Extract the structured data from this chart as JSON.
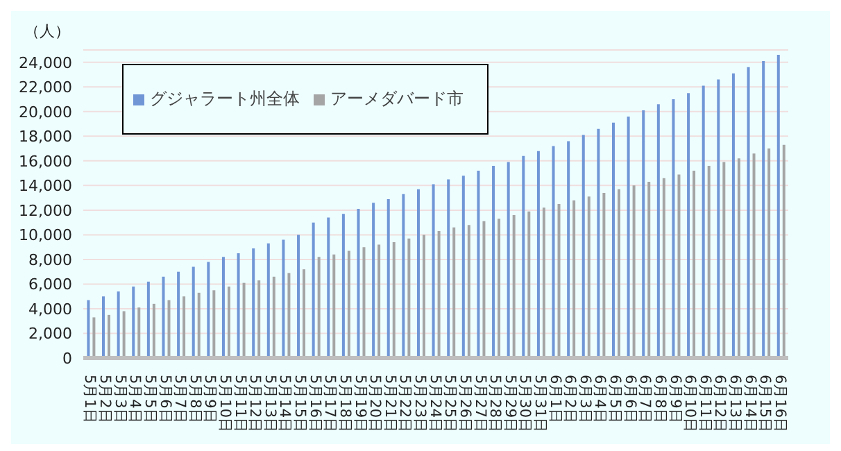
{
  "chart_data": {
    "type": "bar",
    "ylabel": "（人）",
    "categories": [
      "5月1日",
      "5月2日",
      "5月3日",
      "5月4日",
      "5月5日",
      "5月6日",
      "5月7日",
      "5月8日",
      "5月9日",
      "5月10日",
      "5月11日",
      "5月12日",
      "5月13日",
      "5月14日",
      "5月15日",
      "5月16日",
      "5月17日",
      "5月18日",
      "5月19日",
      "5月20日",
      "5月21日",
      "5月22日",
      "5月23日",
      "5月24日",
      "5月25日",
      "5月26日",
      "5月27日",
      "5月28日",
      "5月29日",
      "5月30日",
      "5月31日",
      "6月1日",
      "6月2日",
      "6月3日",
      "6月4日",
      "6月5日",
      "6月6日",
      "6月7日",
      "6月8日",
      "6月9日",
      "6月10日",
      "6月11日",
      "6月12日",
      "6月13日",
      "6月14日",
      "6月15日",
      "6月16日"
    ],
    "series": [
      {
        "name": "グジャラート州全体",
        "color": "#7096d6",
        "values": [
          4700,
          5000,
          5400,
          5800,
          6200,
          6600,
          7000,
          7400,
          7800,
          8200,
          8500,
          8900,
          9300,
          9600,
          10000,
          11000,
          11400,
          11700,
          12100,
          12600,
          12900,
          13300,
          13700,
          14100,
          14500,
          14800,
          15200,
          15600,
          15900,
          16400,
          16800,
          17200,
          17600,
          18100,
          18600,
          19100,
          19600,
          20100,
          20600,
          21000,
          21500,
          22100,
          22600,
          23100,
          23600,
          24100,
          24600
        ]
      },
      {
        "name": "アーメダバード市",
        "color": "#a5a5a5",
        "values": [
          3300,
          3500,
          3800,
          4100,
          4400,
          4700,
          5000,
          5300,
          5500,
          5800,
          6100,
          6300,
          6600,
          6900,
          7200,
          8200,
          8400,
          8700,
          9000,
          9200,
          9400,
          9700,
          10000,
          10300,
          10600,
          10800,
          11100,
          11300,
          11600,
          11900,
          12200,
          12500,
          12800,
          13100,
          13400,
          13700,
          14000,
          14300,
          14600,
          14900,
          15200,
          15600,
          15900,
          16200,
          16600,
          17000,
          17300
        ]
      }
    ],
    "ylim": [
      0,
      25000
    ],
    "yticks": [
      0,
      {
        "value": 2000,
        "label": "2,000"
      },
      {
        "value": 4000,
        "label": "4,000"
      },
      {
        "value": 6000,
        "label": "6,000"
      },
      {
        "value": 8000,
        "label": "8,000"
      },
      {
        "value": 10000,
        "label": "10,000"
      },
      {
        "value": 12000,
        "label": "12,000"
      },
      {
        "value": 14000,
        "label": "14,000"
      },
      {
        "value": 16000,
        "label": "16,000"
      },
      {
        "value": 18000,
        "label": "18,000"
      },
      {
        "value": 20000,
        "label": "20,000"
      },
      {
        "value": 22000,
        "label": "22,000"
      },
      {
        "value": 24000,
        "label": "24,000"
      }
    ],
    "grid": "y",
    "legend": "top left"
  }
}
